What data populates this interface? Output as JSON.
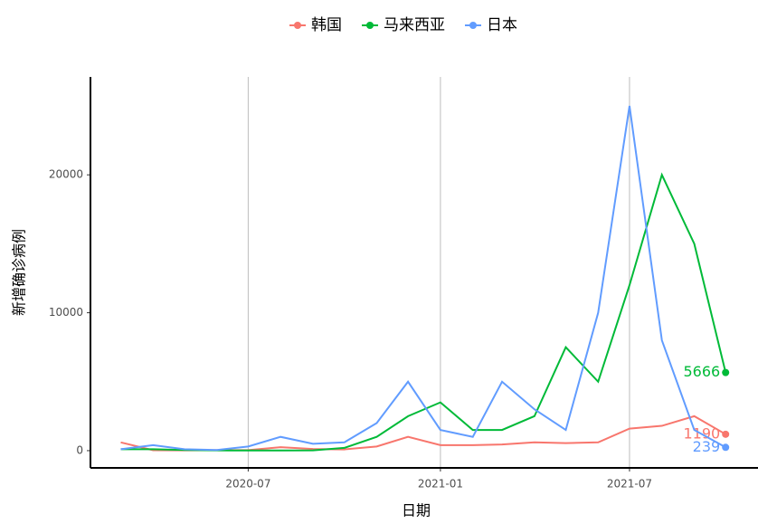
{
  "chart_data": {
    "type": "line",
    "y_label": "新增确诊病例",
    "x_label": "日期",
    "x": [
      "2020-03",
      "2020-04",
      "2020-05",
      "2020-06",
      "2020-07",
      "2020-08",
      "2020-09",
      "2020-10",
      "2020-11",
      "2020-12",
      "2021-01",
      "2021-02",
      "2021-03",
      "2021-04",
      "2021-05",
      "2021-06",
      "2021-07",
      "2021-08",
      "2021-09",
      "2021-10"
    ],
    "series": [
      {
        "name": "韩国",
        "color": "#F8766D",
        "values": [
          600,
          30,
          20,
          40,
          40,
          250,
          120,
          90,
          300,
          1000,
          400,
          400,
          450,
          600,
          550,
          600,
          1600,
          1800,
          2500,
          1190
        ]
      },
      {
        "name": "马来西亚",
        "color": "#00BA38",
        "values": [
          100,
          100,
          50,
          20,
          10,
          10,
          20,
          200,
          1000,
          2500,
          3500,
          1500,
          1500,
          2500,
          7500,
          5000,
          12000,
          20000,
          15000,
          5666
        ]
      },
      {
        "name": "日本",
        "color": "#619CFF",
        "values": [
          100,
          400,
          100,
          50,
          300,
          1000,
          500,
          600,
          2000,
          5000,
          1500,
          1000,
          5000,
          3000,
          1500,
          10000,
          25000,
          8000,
          1500,
          239
        ]
      }
    ],
    "xlim": [
      "2020-02",
      "2021-11"
    ],
    "xticks": [
      "2020-07",
      "2021-01",
      "2021-07"
    ],
    "ylim": [
      -1250,
      27100
    ],
    "yticks": [
      0,
      10000,
      20000
    ],
    "grid_x": true,
    "end_labels": true,
    "legend": "top"
  }
}
